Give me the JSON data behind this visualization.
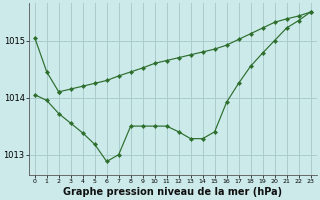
{
  "background_color": "#cceaea",
  "grid_color": "#aacccc",
  "line_color": "#2d6e2d",
  "title": "Graphe pression niveau de la mer (hPa)",
  "title_fontsize": 7.0,
  "xlim": [
    -0.5,
    23.5
  ],
  "ylim": [
    1012.65,
    1015.65
  ],
  "yticks": [
    1013,
    1014,
    1015
  ],
  "xticks": [
    0,
    1,
    2,
    3,
    4,
    5,
    6,
    7,
    8,
    9,
    10,
    11,
    12,
    13,
    14,
    15,
    16,
    17,
    18,
    19,
    20,
    21,
    22,
    23
  ],
  "series1_short": {
    "x": [
      0,
      1,
      2
    ],
    "y": [
      1015.05,
      1014.45,
      1014.1
    ]
  },
  "series2_rising": {
    "x": [
      2,
      3,
      4,
      5,
      6,
      7,
      8,
      9,
      10,
      11,
      12,
      13,
      14,
      15,
      16,
      17,
      18,
      19,
      20,
      21,
      22,
      23
    ],
    "y": [
      1014.1,
      1014.15,
      1014.2,
      1014.25,
      1014.3,
      1014.38,
      1014.45,
      1014.52,
      1014.6,
      1014.65,
      1014.7,
      1014.75,
      1014.8,
      1014.85,
      1014.92,
      1015.02,
      1015.12,
      1015.22,
      1015.32,
      1015.38,
      1015.43,
      1015.5
    ]
  },
  "series3_ucurve": {
    "x": [
      0,
      1,
      2,
      3,
      4,
      5,
      6,
      7,
      8,
      9,
      10,
      11,
      12,
      13,
      14,
      15,
      16,
      17,
      18,
      19,
      20,
      21,
      22,
      23
    ],
    "y": [
      1014.05,
      1013.95,
      1013.72,
      1013.55,
      1013.38,
      1013.18,
      1012.88,
      1013.0,
      1013.5,
      1013.5,
      1013.5,
      1013.5,
      1013.4,
      1013.28,
      1013.28,
      1013.4,
      1013.92,
      1014.25,
      1014.55,
      1014.78,
      1015.0,
      1015.22,
      1015.35,
      1015.5
    ]
  }
}
